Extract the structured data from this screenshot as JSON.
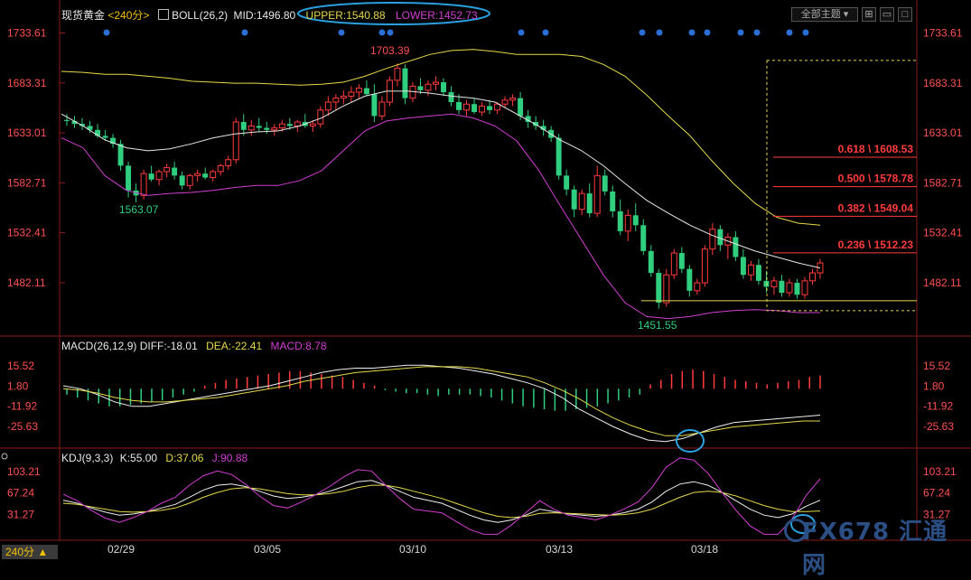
{
  "header": {
    "symbol": "现货黄金",
    "period": "<240分>",
    "indicator": "BOLL(26,2)",
    "mid": "MID:1496.80",
    "upper": "UPPER:1540.88",
    "lower": "LOWER:1452.73",
    "theme_button": "全部主题",
    "period_tag": "240分 ▲"
  },
  "macd_header": {
    "name": "MACD(26,12,9)",
    "diff": "DIFF:-18.01",
    "dea": "DEA:-22.41",
    "macd": "MACD:8.78"
  },
  "kdj_header": {
    "name": "KDJ(9,3,3)",
    "k": "K:55.00",
    "d": "D:37.06",
    "j": "J:90.88"
  },
  "watermark": "FX678 汇通网",
  "colors": {
    "up": "#ff3c3c",
    "down": "#2fcf7f",
    "mid": "#e6e6e6",
    "upper": "#e6d84a",
    "lower": "#d23fd2",
    "fib": "#ff3c3c",
    "yellow_line": "#e6d84a"
  },
  "chart_data": [
    {
      "type": "candlestick",
      "title": "现货黄金 240分",
      "ylim": [
        1432,
        1745
      ],
      "y_ticks": [
        "1733.61",
        "1683.31",
        "1633.01",
        "1582.71",
        "1532.41",
        "1482.11"
      ],
      "x_ticks": [
        "02/29",
        "03/05",
        "03/10",
        "03/13",
        "03/18"
      ],
      "annotations": [
        "1703.39",
        "1563.07",
        "1451.55"
      ],
      "fibonacci": [
        {
          "label": "0.618 \\ 1608.53",
          "value": 1608.53
        },
        {
          "label": "0.500 \\ 1578.78",
          "value": 1578.78
        },
        {
          "label": "0.382 \\ 1549.04",
          "value": 1549.04
        },
        {
          "label": "0.236 \\ 1512.23",
          "value": 1512.23
        }
      ],
      "ohlc": [
        [
          1646,
          1652,
          1640,
          1645
        ],
        [
          1645,
          1650,
          1638,
          1642
        ],
        [
          1642,
          1648,
          1636,
          1640
        ],
        [
          1640,
          1645,
          1633,
          1636
        ],
        [
          1636,
          1642,
          1628,
          1630
        ],
        [
          1630,
          1636,
          1625,
          1628
        ],
        [
          1628,
          1632,
          1618,
          1622
        ],
        [
          1622,
          1626,
          1595,
          1600
        ],
        [
          1600,
          1604,
          1568,
          1575
        ],
        [
          1575,
          1582,
          1563,
          1570
        ],
        [
          1570,
          1596,
          1566,
          1592
        ],
        [
          1592,
          1600,
          1584,
          1586
        ],
        [
          1586,
          1596,
          1580,
          1594
        ],
        [
          1594,
          1602,
          1588,
          1598
        ],
        [
          1598,
          1604,
          1586,
          1590
        ],
        [
          1590,
          1594,
          1576,
          1580
        ],
        [
          1580,
          1592,
          1576,
          1590
        ],
        [
          1590,
          1596,
          1584,
          1592
        ],
        [
          1592,
          1598,
          1586,
          1588
        ],
        [
          1588,
          1596,
          1584,
          1594
        ],
        [
          1594,
          1602,
          1590,
          1600
        ],
        [
          1600,
          1610,
          1596,
          1606
        ],
        [
          1606,
          1648,
          1602,
          1644
        ],
        [
          1644,
          1652,
          1630,
          1636
        ],
        [
          1636,
          1646,
          1630,
          1640
        ],
        [
          1640,
          1648,
          1634,
          1638
        ],
        [
          1638,
          1644,
          1632,
          1636
        ],
        [
          1636,
          1642,
          1630,
          1638
        ],
        [
          1638,
          1646,
          1634,
          1642
        ],
        [
          1642,
          1648,
          1636,
          1640
        ],
        [
          1640,
          1646,
          1634,
          1644
        ],
        [
          1644,
          1652,
          1638,
          1640
        ],
        [
          1640,
          1646,
          1634,
          1642
        ],
        [
          1642,
          1660,
          1638,
          1656
        ],
        [
          1656,
          1670,
          1650,
          1664
        ],
        [
          1664,
          1672,
          1656,
          1668
        ],
        [
          1668,
          1676,
          1662,
          1670
        ],
        [
          1670,
          1680,
          1664,
          1674
        ],
        [
          1674,
          1682,
          1668,
          1678
        ],
        [
          1678,
          1686,
          1670,
          1672
        ],
        [
          1672,
          1682,
          1644,
          1650
        ],
        [
          1650,
          1670,
          1646,
          1664
        ],
        [
          1664,
          1690,
          1660,
          1686
        ],
        [
          1686,
          1703,
          1680,
          1698
        ],
        [
          1698,
          1702,
          1662,
          1668
        ],
        [
          1668,
          1684,
          1664,
          1680
        ],
        [
          1680,
          1688,
          1672,
          1676
        ],
        [
          1676,
          1686,
          1670,
          1682
        ],
        [
          1682,
          1690,
          1676,
          1684
        ],
        [
          1684,
          1688,
          1670,
          1674
        ],
        [
          1674,
          1680,
          1660,
          1664
        ],
        [
          1664,
          1672,
          1652,
          1656
        ],
        [
          1656,
          1666,
          1650,
          1662
        ],
        [
          1662,
          1668,
          1652,
          1654
        ],
        [
          1654,
          1664,
          1650,
          1660
        ],
        [
          1660,
          1666,
          1652,
          1656
        ],
        [
          1656,
          1664,
          1652,
          1662
        ],
        [
          1662,
          1670,
          1658,
          1666
        ],
        [
          1666,
          1672,
          1660,
          1668
        ],
        [
          1668,
          1674,
          1646,
          1650
        ],
        [
          1650,
          1656,
          1638,
          1644
        ],
        [
          1644,
          1650,
          1636,
          1640
        ],
        [
          1640,
          1646,
          1630,
          1636
        ],
        [
          1636,
          1640,
          1624,
          1628
        ],
        [
          1628,
          1632,
          1586,
          1590
        ],
        [
          1590,
          1596,
          1570,
          1576
        ],
        [
          1576,
          1580,
          1548,
          1556
        ],
        [
          1556,
          1576,
          1550,
          1572
        ],
        [
          1572,
          1582,
          1548,
          1552
        ],
        [
          1552,
          1600,
          1548,
          1590
        ],
        [
          1590,
          1596,
          1570,
          1574
        ],
        [
          1574,
          1580,
          1548,
          1554
        ],
        [
          1554,
          1566,
          1530,
          1534
        ],
        [
          1534,
          1556,
          1524,
          1550
        ],
        [
          1550,
          1562,
          1534,
          1540
        ],
        [
          1540,
          1546,
          1510,
          1514
        ],
        [
          1514,
          1520,
          1488,
          1492
        ],
        [
          1492,
          1496,
          1456,
          1462
        ],
        [
          1462,
          1496,
          1458,
          1490
        ],
        [
          1490,
          1516,
          1486,
          1512
        ],
        [
          1512,
          1518,
          1492,
          1496
        ],
        [
          1496,
          1500,
          1468,
          1474
        ],
        [
          1474,
          1486,
          1470,
          1482
        ],
        [
          1482,
          1520,
          1478,
          1516
        ],
        [
          1516,
          1542,
          1510,
          1536
        ],
        [
          1536,
          1540,
          1514,
          1520
        ],
        [
          1520,
          1532,
          1506,
          1528
        ],
        [
          1528,
          1534,
          1504,
          1508
        ],
        [
          1508,
          1516,
          1486,
          1490
        ],
        [
          1490,
          1504,
          1484,
          1500
        ],
        [
          1500,
          1506,
          1480,
          1484
        ],
        [
          1484,
          1494,
          1472,
          1478
        ],
        [
          1478,
          1488,
          1470,
          1484
        ],
        [
          1484,
          1490,
          1468,
          1472
        ],
        [
          1472,
          1486,
          1468,
          1482
        ],
        [
          1482,
          1486,
          1466,
          1470
        ],
        [
          1470,
          1488,
          1466,
          1484
        ],
        [
          1484,
          1496,
          1480,
          1492
        ],
        [
          1492,
          1506,
          1486,
          1502
        ]
      ],
      "boll_upper": [
        1695,
        1694,
        1692,
        1692,
        1690,
        1688,
        1685,
        1684,
        1683,
        1683,
        1682,
        1681,
        1682,
        1684,
        1690,
        1698,
        1705,
        1712,
        1716,
        1717,
        1715,
        1712,
        1712,
        1712,
        1710,
        1702,
        1690,
        1671,
        1650,
        1630,
        1605,
        1582,
        1562,
        1548,
        1542,
        1540
      ],
      "boll_mid": [
        1652,
        1640,
        1626,
        1618,
        1615,
        1617,
        1622,
        1628,
        1632,
        1634,
        1635,
        1640,
        1648,
        1660,
        1670,
        1675,
        1675,
        1673,
        1670,
        1668,
        1664,
        1652,
        1640,
        1626,
        1615,
        1600,
        1582,
        1565,
        1552,
        1540,
        1530,
        1522,
        1514,
        1508,
        1502,
        1497
      ],
      "boll_lower": [
        1628,
        1618,
        1590,
        1575,
        1570,
        1572,
        1573,
        1575,
        1578,
        1580,
        1580,
        1585,
        1595,
        1615,
        1635,
        1645,
        1648,
        1650,
        1652,
        1648,
        1640,
        1625,
        1596,
        1560,
        1525,
        1490,
        1462,
        1448,
        1446,
        1448,
        1452,
        1454,
        1455,
        1454,
        1452,
        1452
      ]
    },
    {
      "type": "macd",
      "title": "MACD(26,12,9)",
      "ylim": [
        -38,
        26
      ],
      "y_ticks": [
        "15.52",
        "1.80",
        "-11.92",
        "-25.63"
      ],
      "hist": [
        -4,
        -6,
        -8,
        -10,
        -12,
        -12,
        -11,
        -10,
        -9,
        -8,
        -6,
        -4,
        -2,
        2,
        4,
        6,
        7,
        8,
        9,
        10,
        11,
        12,
        12,
        11,
        10,
        9,
        8,
        6,
        4,
        2,
        -1,
        -2,
        -3,
        -3,
        -4,
        -5,
        -4,
        -4,
        -4,
        -5,
        -6,
        -8,
        -10,
        -12,
        -13,
        -14,
        -15,
        -15,
        -14,
        -13,
        -12,
        -10,
        -8,
        -6,
        -4,
        3,
        6,
        10,
        12,
        13,
        12,
        10,
        8,
        6,
        5,
        4,
        3,
        4,
        5,
        6,
        8,
        9
      ],
      "diff": [
        2,
        0,
        -4,
        -9,
        -12,
        -12,
        -10,
        -8,
        -6,
        -4,
        -2,
        0,
        2,
        5,
        8,
        11,
        13,
        14,
        14,
        15,
        16,
        16,
        15,
        14,
        12,
        10,
        7,
        4,
        0,
        -6,
        -14,
        -20,
        -26,
        -31,
        -35,
        -36,
        -34,
        -30,
        -26,
        -23,
        -22,
        -21,
        -20,
        -19,
        -18
      ],
      "dea": [
        0,
        -1,
        -3,
        -6,
        -8,
        -9,
        -9,
        -8,
        -7,
        -6,
        -4,
        -2,
        0,
        2,
        5,
        7,
        9,
        11,
        12,
        13,
        14,
        15,
        15,
        15,
        14,
        12,
        10,
        8,
        4,
        -1,
        -7,
        -14,
        -20,
        -25,
        -29,
        -32,
        -32,
        -30,
        -28,
        -26,
        -25,
        -24,
        -23,
        -22,
        -22
      ]
    },
    {
      "type": "kdj",
      "title": "KDJ(9,3,3)",
      "ylim": [
        -12,
        118
      ],
      "y_ticks": [
        "103.21",
        "67.24",
        "31.27"
      ],
      "k": [
        55,
        50,
        42,
        35,
        30,
        32,
        36,
        42,
        48,
        60,
        72,
        80,
        82,
        78,
        70,
        62,
        58,
        60,
        64,
        70,
        78,
        86,
        88,
        80,
        70,
        60,
        55,
        50,
        40,
        30,
        22,
        18,
        22,
        30,
        40,
        36,
        32,
        30,
        28,
        30,
        34,
        40,
        52,
        70,
        82,
        86,
        80,
        68,
        54,
        40,
        30,
        26,
        32,
        45,
        55
      ],
      "d": [
        50,
        48,
        44,
        40,
        36,
        35,
        36,
        38,
        42,
        50,
        60,
        68,
        74,
        76,
        74,
        70,
        66,
        64,
        64,
        66,
        70,
        76,
        80,
        80,
        76,
        70,
        64,
        58,
        50,
        42,
        34,
        28,
        26,
        28,
        33,
        34,
        33,
        32,
        31,
        30,
        31,
        34,
        40,
        50,
        60,
        68,
        70,
        68,
        62,
        54,
        46,
        40,
        36,
        36,
        37
      ],
      "j": [
        65,
        54,
        38,
        25,
        18,
        26,
        36,
        50,
        60,
        80,
        96,
        104,
        98,
        82,
        62,
        46,
        42,
        52,
        64,
        78,
        94,
        106,
        104,
        80,
        58,
        40,
        37,
        34,
        20,
        6,
        -2,
        -2,
        14,
        34,
        54,
        40,
        30,
        26,
        22,
        30,
        40,
        52,
        76,
        110,
        126,
        122,
        100,
        68,
        38,
        12,
        -2,
        -2,
        24,
        63,
        91
      ]
    }
  ]
}
